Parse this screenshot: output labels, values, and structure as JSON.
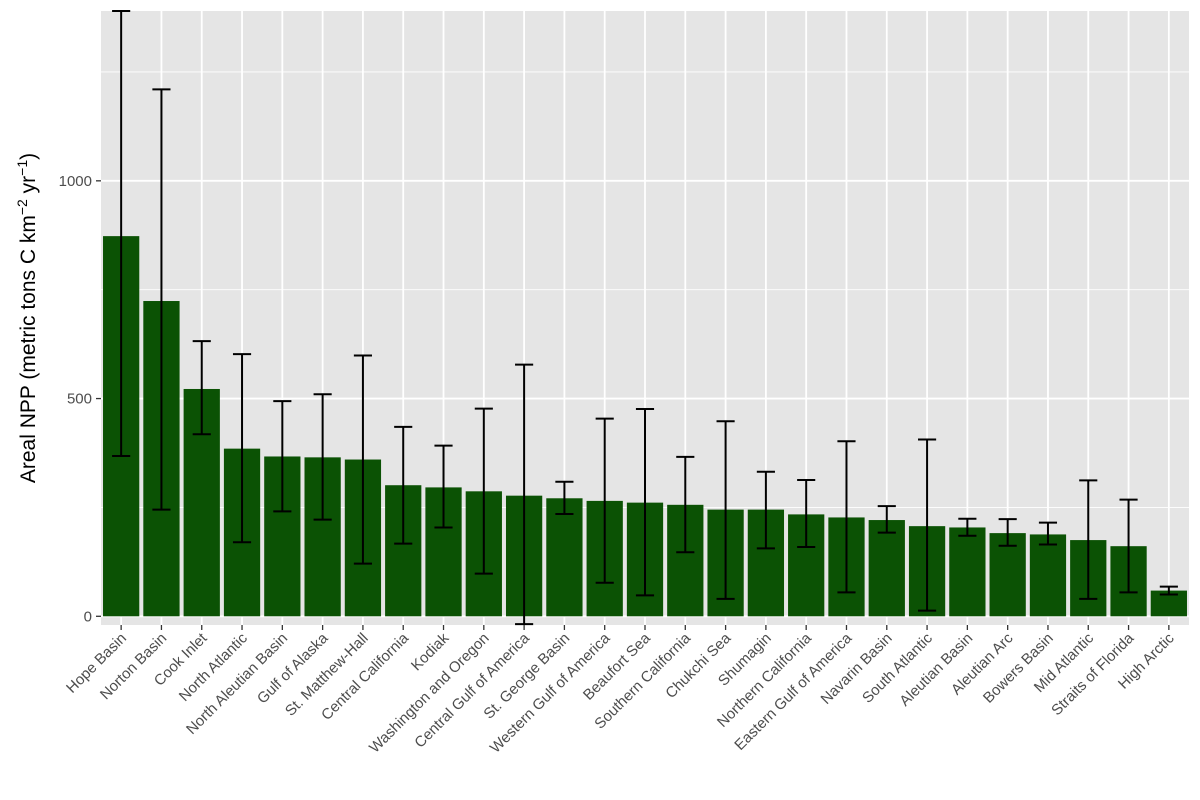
{
  "colors": {
    "panel": "#e5e5e5",
    "grid_major": "#ffffff",
    "bar": "#0b5204",
    "errorbar": "#000000",
    "tick_text": "#4d4d4d"
  },
  "chart_data": {
    "type": "bar",
    "title": "",
    "xlabel": "",
    "ylabel": {
      "prefix": "Areal NPP (metric tons C km",
      "sup1": "−2",
      "middle": " yr",
      "sup2": "−1",
      "suffix": ")"
    },
    "ylim": [
      -20,
      1390
    ],
    "yticks": [
      0,
      500,
      1000
    ],
    "ytick_labels": [
      "0",
      "500",
      "1000"
    ],
    "categories": [
      "Hope Basin",
      "Norton Basin",
      "Cook Inlet",
      "North Atlantic",
      "North Aleutian Basin",
      "Gulf of Alaska",
      "St. Matthew-Hall",
      "Central California",
      "Kodiak",
      "Washington and Oregon",
      "Central Gulf of America",
      "St. George Basin",
      "Western Gulf of America",
      "Beaufort Sea",
      "Southern California",
      "Chukchi Sea",
      "Shumagin",
      "Northern California",
      "Eastern Gulf of America",
      "Navarin Basin",
      "South Atlantic",
      "Aleutian Basin",
      "Aleutian Arc",
      "Bowers Basin",
      "Mid Atlantic",
      "Straits of Florida",
      "High Arctic"
    ],
    "values": [
      873,
      724,
      522,
      385,
      367,
      365,
      360,
      301,
      296,
      287,
      277,
      271,
      265,
      261,
      256,
      245,
      245,
      234,
      227,
      221,
      207,
      204,
      191,
      188,
      175,
      161,
      59
    ],
    "error_low": [
      368,
      245,
      418,
      170,
      241,
      222,
      121,
      167,
      204,
      98,
      -18,
      235,
      77,
      48,
      147,
      40,
      156,
      159,
      55,
      192,
      13,
      185,
      162,
      165,
      40,
      55,
      50
    ],
    "error_high": [
      1390,
      1210,
      632,
      602,
      494,
      510,
      599,
      435,
      392,
      477,
      578,
      309,
      454,
      476,
      366,
      448,
      332,
      313,
      402,
      253,
      406,
      224,
      223,
      215,
      312,
      268,
      68
    ]
  }
}
